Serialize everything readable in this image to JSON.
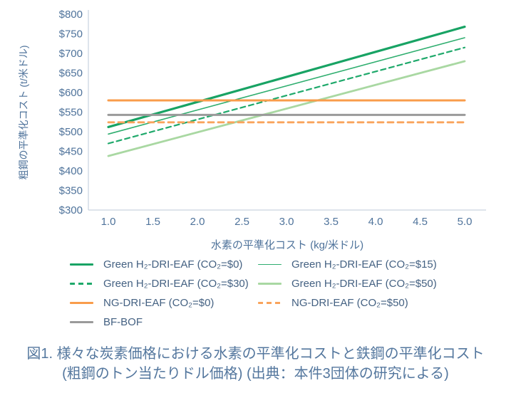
{
  "chart_data": {
    "type": "line",
    "title": "",
    "xlabel": "水素の平準化コスト (kg/米ドル)",
    "ylabel": "粗鋼の平準化コスト (t/米ドル)",
    "xlim": [
      1.0,
      5.0
    ],
    "ylim": [
      300,
      800
    ],
    "grid": false,
    "legend_position": "bottom-left",
    "x_ticks": [
      {
        "value": 1.0,
        "label": "1.0"
      },
      {
        "value": 1.5,
        "label": "1.5"
      },
      {
        "value": 2.0,
        "label": "2.0"
      },
      {
        "value": 2.5,
        "label": "2.5"
      },
      {
        "value": 3.0,
        "label": "3.0"
      },
      {
        "value": 3.5,
        "label": "3.5"
      },
      {
        "value": 4.0,
        "label": "4.0"
      },
      {
        "value": 4.5,
        "label": "4.5"
      },
      {
        "value": 5.0,
        "label": "5.0"
      }
    ],
    "y_ticks": [
      {
        "value": 300,
        "label": "$300"
      },
      {
        "value": 350,
        "label": "$350"
      },
      {
        "value": 400,
        "label": "$400"
      },
      {
        "value": 450,
        "label": "$450"
      },
      {
        "value": 500,
        "label": "$500"
      },
      {
        "value": 550,
        "label": "$550"
      },
      {
        "value": 600,
        "label": "$600"
      },
      {
        "value": 650,
        "label": "$650"
      },
      {
        "value": 700,
        "label": "$700"
      },
      {
        "value": 750,
        "label": "$750"
      },
      {
        "value": 800,
        "label": "$800"
      }
    ],
    "x": [
      1.0,
      5.0
    ],
    "series": [
      {
        "name": "Green H₂-DRI-EAF (CO₂=$0)",
        "values": [
          512,
          768
        ],
        "color": "#18A364",
        "width": 3.2,
        "dash": ""
      },
      {
        "name": "Green H₂-DRI-EAF (CO₂=$15)",
        "values": [
          494,
          740
        ],
        "color": "#2FAE6F",
        "width": 1.6,
        "dash": ""
      },
      {
        "name": "Green H₂-DRI-EAF (CO₂=$30)",
        "values": [
          470,
          715
        ],
        "color": "#1FA96B",
        "width": 2.2,
        "dash": "7,5"
      },
      {
        "name": "Green H₂-DRI-EAF (CO₂=$50)",
        "values": [
          438,
          680
        ],
        "color": "#A9D8A2",
        "width": 2.8,
        "dash": ""
      },
      {
        "name": "NG-DRI-EAF (CO₂=$0)",
        "values": [
          580,
          580
        ],
        "color": "#F99C4B",
        "width": 3.0,
        "dash": ""
      },
      {
        "name": "NG-DRI-EAF (CO₂=$50)",
        "values": [
          524,
          524
        ],
        "color": "#F9A45C",
        "width": 2.8,
        "dash": "8,6"
      },
      {
        "name": "BF-BOF",
        "values": [
          543,
          543
        ],
        "color": "#9A9A9A",
        "width": 3.0,
        "dash": ""
      }
    ]
  },
  "caption": {
    "line1": "図1. 様々な炭素価格における水素の平準化コストと鉄鋼の平準化コスト",
    "line2": "(粗鋼のトン当たりドル価格) (出典：本件3団体の研究による)"
  },
  "colors": {
    "axis_line": "#C9D3DF",
    "tick_label": "#4F739B",
    "legend_text": "#446182",
    "caption_text": "#54779E"
  }
}
